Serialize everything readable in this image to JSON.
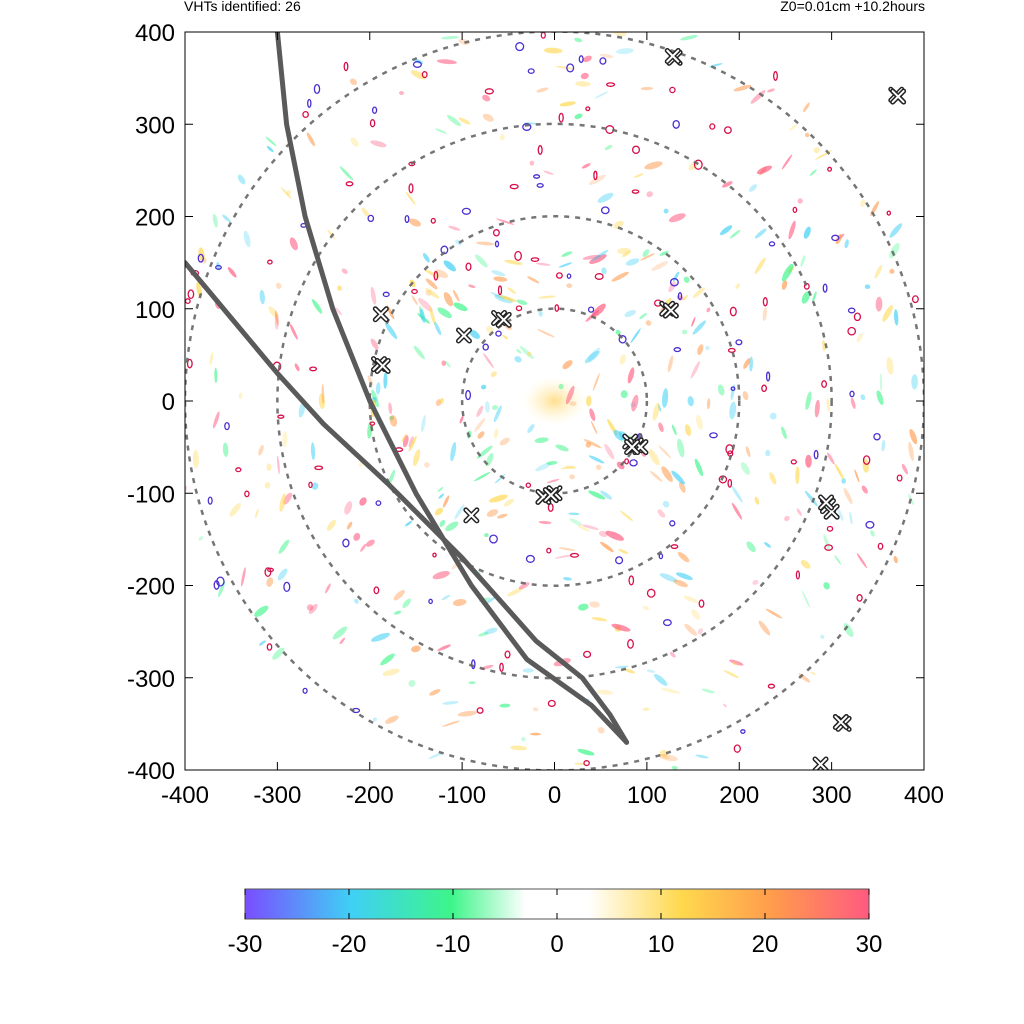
{
  "header": {
    "left": "VHTs identified: 26",
    "right": "Z0=0.01cm  +10.2hours"
  },
  "chart_data": {
    "type": "heatmap",
    "title": "",
    "xlabel": "",
    "ylabel": "",
    "xlim": [
      -400,
      400
    ],
    "ylim": [
      -400,
      400
    ],
    "x_ticks": [
      -400,
      -300,
      -200,
      -100,
      0,
      100,
      200,
      300,
      400
    ],
    "y_ticks": [
      -400,
      -300,
      -200,
      -100,
      0,
      100,
      200,
      300,
      400
    ],
    "range_rings": [
      100,
      200,
      300,
      400
    ],
    "colorbar": {
      "min": -30,
      "max": 30,
      "ticks": [
        -30,
        -20,
        -10,
        0,
        10,
        20,
        30
      ],
      "colors": [
        "#7a4dff",
        "#3fd0f5",
        "#3df58a",
        "#ffffff",
        "#ffffff",
        "#ffd84d",
        "#ff9a4d",
        "#ff5a80"
      ]
    },
    "vht_count": 26,
    "vht_markers": [
      {
        "x": 130,
        "y": 372
      },
      {
        "x": 370,
        "y": 332
      },
      {
        "x": -188,
        "y": 94
      },
      {
        "x": -98,
        "y": 71
      },
      {
        "x": -60,
        "y": 90
      },
      {
        "x": -55,
        "y": 88
      },
      {
        "x": 122,
        "y": 100
      },
      {
        "x": -190,
        "y": 40
      },
      {
        "x": 82,
        "y": -44
      },
      {
        "x": 88,
        "y": -48
      },
      {
        "x": 93,
        "y": -50
      },
      {
        "x": 0,
        "y": -100
      },
      {
        "x": -12,
        "y": -104
      },
      {
        "x": -90,
        "y": -124
      },
      {
        "x": 296,
        "y": -114
      },
      {
        "x": 300,
        "y": -120
      },
      {
        "x": 313,
        "y": -350
      },
      {
        "x": 288,
        "y": -394
      },
      {
        "x": 310,
        "y": -348
      },
      {
        "x": 126,
        "y": 98
      },
      {
        "x": -186,
        "y": 38
      },
      {
        "x": 84,
        "y": -50
      },
      {
        "x": -4,
        "y": -102
      },
      {
        "x": 294,
        "y": -110
      },
      {
        "x": 128,
        "y": 374
      },
      {
        "x": 372,
        "y": 330
      }
    ],
    "tracks": [
      {
        "name": "",
        "points": [
          [
            -300,
            400
          ],
          [
            -290,
            300
          ],
          [
            -270,
            200
          ],
          [
            -240,
            100
          ],
          [
            -200,
            0
          ],
          [
            -150,
            -100
          ],
          [
            -90,
            -200
          ],
          [
            -30,
            -280
          ],
          [
            40,
            -330
          ],
          [
            78,
            -370
          ]
        ]
      },
      {
        "name": "",
        "points": [
          [
            -400,
            150
          ],
          [
            -350,
            90
          ],
          [
            -300,
            30
          ],
          [
            -250,
            -25
          ],
          [
            -180,
            -90
          ],
          [
            -100,
            -170
          ],
          [
            -20,
            -260
          ],
          [
            30,
            -300
          ],
          [
            60,
            -340
          ],
          [
            78,
            -370
          ]
        ]
      }
    ]
  }
}
